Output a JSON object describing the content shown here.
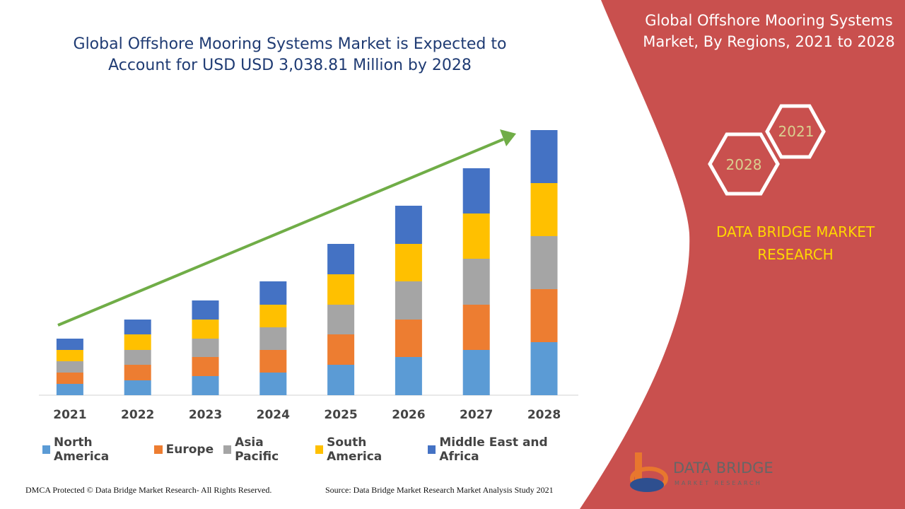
{
  "chart_data": {
    "type": "bar",
    "stacked": true,
    "title": "Global Offshore Mooring Systems Market is Expected to Account for USD USD 3,038.81 Million by 2028",
    "categories": [
      "2021",
      "2022",
      "2023",
      "2024",
      "2025",
      "2026",
      "2027",
      "2028"
    ],
    "series": [
      {
        "name": "North America",
        "color": "#5b9bd5",
        "values": [
          16,
          21,
          27,
          32,
          43,
          54,
          64,
          75
        ]
      },
      {
        "name": "Europe",
        "color": "#ed7d31",
        "values": [
          16,
          22,
          27,
          32,
          43,
          53,
          64,
          75
        ]
      },
      {
        "name": "Asia Pacific",
        "color": "#a5a5a5",
        "values": [
          16,
          21,
          26,
          32,
          42,
          54,
          65,
          75
        ]
      },
      {
        "name": "South America",
        "color": "#ffc000",
        "values": [
          16,
          22,
          27,
          32,
          43,
          53,
          64,
          75
        ]
      },
      {
        "name": "Middle East and Africa",
        "color": "#4472c4",
        "values": [
          16,
          21,
          27,
          33,
          43,
          54,
          64,
          75
        ]
      }
    ]
  },
  "side_panel": {
    "title": "Global Offshore Mooring Systems Market, By Regions, 2021 to 2028",
    "hexagon_front": "2028",
    "hexagon_back": "2021",
    "brand": "DATA BRIDGE MARKET RESEARCH"
  },
  "logo": {
    "name": "DATA BRIDGE",
    "tagline": "MARKET RESEARCH"
  },
  "footer": {
    "left": "DMCA Protected © Data Bridge Market Research- All Rights Reserved.",
    "right": "Source: Data Bridge Market Research Market Analysis Study 2021"
  }
}
